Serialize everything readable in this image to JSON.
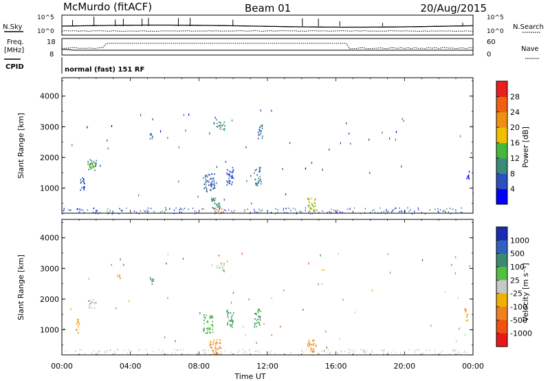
{
  "header": {
    "title": "McMurdo (fitACF)",
    "beam": "Beam 01",
    "date": "20/Aug/2015"
  },
  "params": {
    "nsky_label": "N.Sky",
    "nsearch_label": "N.Search",
    "freq_label_1": "Freq.",
    "freq_label_2": "[MHz]",
    "nave_label": "Nave",
    "cpid_label": "CPID",
    "cpid_text": "normal (fast) 151 RF",
    "noise_ticks_left": [
      "10^5",
      "10^0"
    ],
    "noise_ticks_right": [
      "10^5",
      "10^0"
    ],
    "freq_ticks": [
      "18",
      "8"
    ],
    "nave_ticks": [
      "60",
      "0"
    ]
  },
  "panels": {
    "ylabel": "Slant Range [km]",
    "xlabel": "Time UT",
    "yticks": [
      "1000",
      "2000",
      "3000",
      "4000"
    ],
    "xticks": [
      "00:00",
      "04:00",
      "08:00",
      "12:00",
      "16:00",
      "20:00",
      "00:00"
    ]
  },
  "colorbars": {
    "power": {
      "label": "Power [dB]",
      "tick_labels": [
        "4",
        "8",
        "12",
        "16",
        "20",
        "24",
        "28"
      ],
      "colors": [
        "#0000ff",
        "#2b4fc0",
        "#3a8a7a",
        "#44b83a",
        "#f0c000",
        "#f09010",
        "#f06010",
        "#e82020"
      ]
    },
    "velocity": {
      "label": "Velocity [m s⁻¹]",
      "tick_labels": [
        "1000",
        "500",
        "100",
        "25",
        "-25",
        "-100",
        "-500",
        "-1000"
      ],
      "colors": [
        "#1a2cb0",
        "#3060c0",
        "#3a8a70",
        "#50c040",
        "#c8c8c8",
        "#f0b000",
        "#f08020",
        "#f05010",
        "#e81818"
      ]
    }
  },
  "chart_data": [
    {
      "type": "heatmap",
      "title": "",
      "xlabel": "Time UT",
      "ylabel": "Slant Range [km]",
      "x_unit": "hours UT",
      "xlim": [
        0,
        24
      ],
      "ylim": [
        180,
        4600
      ],
      "colorbar_label": "Power [dB]",
      "colorbar_range": [
        0,
        32
      ],
      "echo_regions": [
        {
          "t": [
            1.0,
            1.3
          ],
          "range_km": [
            900,
            1400
          ],
          "value": 6
        },
        {
          "t": [
            1.5,
            2.0
          ],
          "range_km": [
            1600,
            2000
          ],
          "value": 10
        },
        {
          "t": [
            1.5,
            1.9
          ],
          "range_km": [
            1650,
            1850
          ],
          "value": 15
        },
        {
          "t": [
            5.1,
            5.3
          ],
          "range_km": [
            2500,
            2800
          ],
          "value": 7
        },
        {
          "t": [
            8.2,
            8.9
          ],
          "range_km": [
            900,
            1500
          ],
          "value": 7
        },
        {
          "t": [
            8.7,
            9.2
          ],
          "range_km": [
            300,
            700
          ],
          "value": 10
        },
        {
          "t": [
            9.0,
            9.4
          ],
          "range_km": [
            180,
            350
          ],
          "value": 24
        },
        {
          "t": [
            9.0,
            9.5
          ],
          "range_km": [
            2900,
            3200
          ],
          "value": 10
        },
        {
          "t": [
            9.6,
            10.0
          ],
          "range_km": [
            1100,
            1700
          ],
          "value": 6
        },
        {
          "t": [
            11.2,
            11.6
          ],
          "range_km": [
            1100,
            1700
          ],
          "value": 9
        },
        {
          "t": [
            11.4,
            11.7
          ],
          "range_km": [
            2600,
            3100
          ],
          "value": 8
        },
        {
          "t": [
            14.3,
            14.8
          ],
          "range_km": [
            200,
            700
          ],
          "value": 17
        },
        {
          "t": [
            23.6,
            23.8
          ],
          "range_km": [
            1300,
            1600
          ],
          "value": 5
        }
      ]
    },
    {
      "type": "heatmap",
      "title": "",
      "xlabel": "Time UT",
      "ylabel": "Slant Range [km]",
      "x_unit": "hours UT",
      "xlim": [
        0,
        24
      ],
      "ylim": [
        180,
        4600
      ],
      "colorbar_label": "Velocity [m s⁻¹]",
      "colorbar_range": [
        -1000,
        1000
      ],
      "echo_regions": [
        {
          "t": [
            0.8,
            1.0
          ],
          "range_km": [
            900,
            1400
          ],
          "value": -300
        },
        {
          "t": [
            1.5,
            2.0
          ],
          "range_km": [
            1700,
            2000
          ],
          "value": 80
        },
        {
          "t": [
            3.2,
            3.4
          ],
          "range_km": [
            2700,
            2800
          ],
          "value": -400
        },
        {
          "t": [
            5.1,
            5.3
          ],
          "range_km": [
            2500,
            2800
          ],
          "value": 500
        },
        {
          "t": [
            8.2,
            8.8
          ],
          "range_km": [
            900,
            1500
          ],
          "value": 300
        },
        {
          "t": [
            8.6,
            9.3
          ],
          "range_km": [
            200,
            700
          ],
          "value": -400
        },
        {
          "t": [
            9.0,
            9.5
          ],
          "range_km": [
            2900,
            3200
          ],
          "value": 60
        },
        {
          "t": [
            9.6,
            10.0
          ],
          "range_km": [
            1100,
            1700
          ],
          "value": 400
        },
        {
          "t": [
            11.2,
            11.6
          ],
          "range_km": [
            1100,
            1700
          ],
          "value": 400
        },
        {
          "t": [
            14.3,
            14.8
          ],
          "range_km": [
            300,
            700
          ],
          "value": -400
        },
        {
          "t": [
            23.5,
            23.7
          ],
          "range_km": [
            1300,
            1700
          ],
          "value": -300
        }
      ]
    }
  ]
}
